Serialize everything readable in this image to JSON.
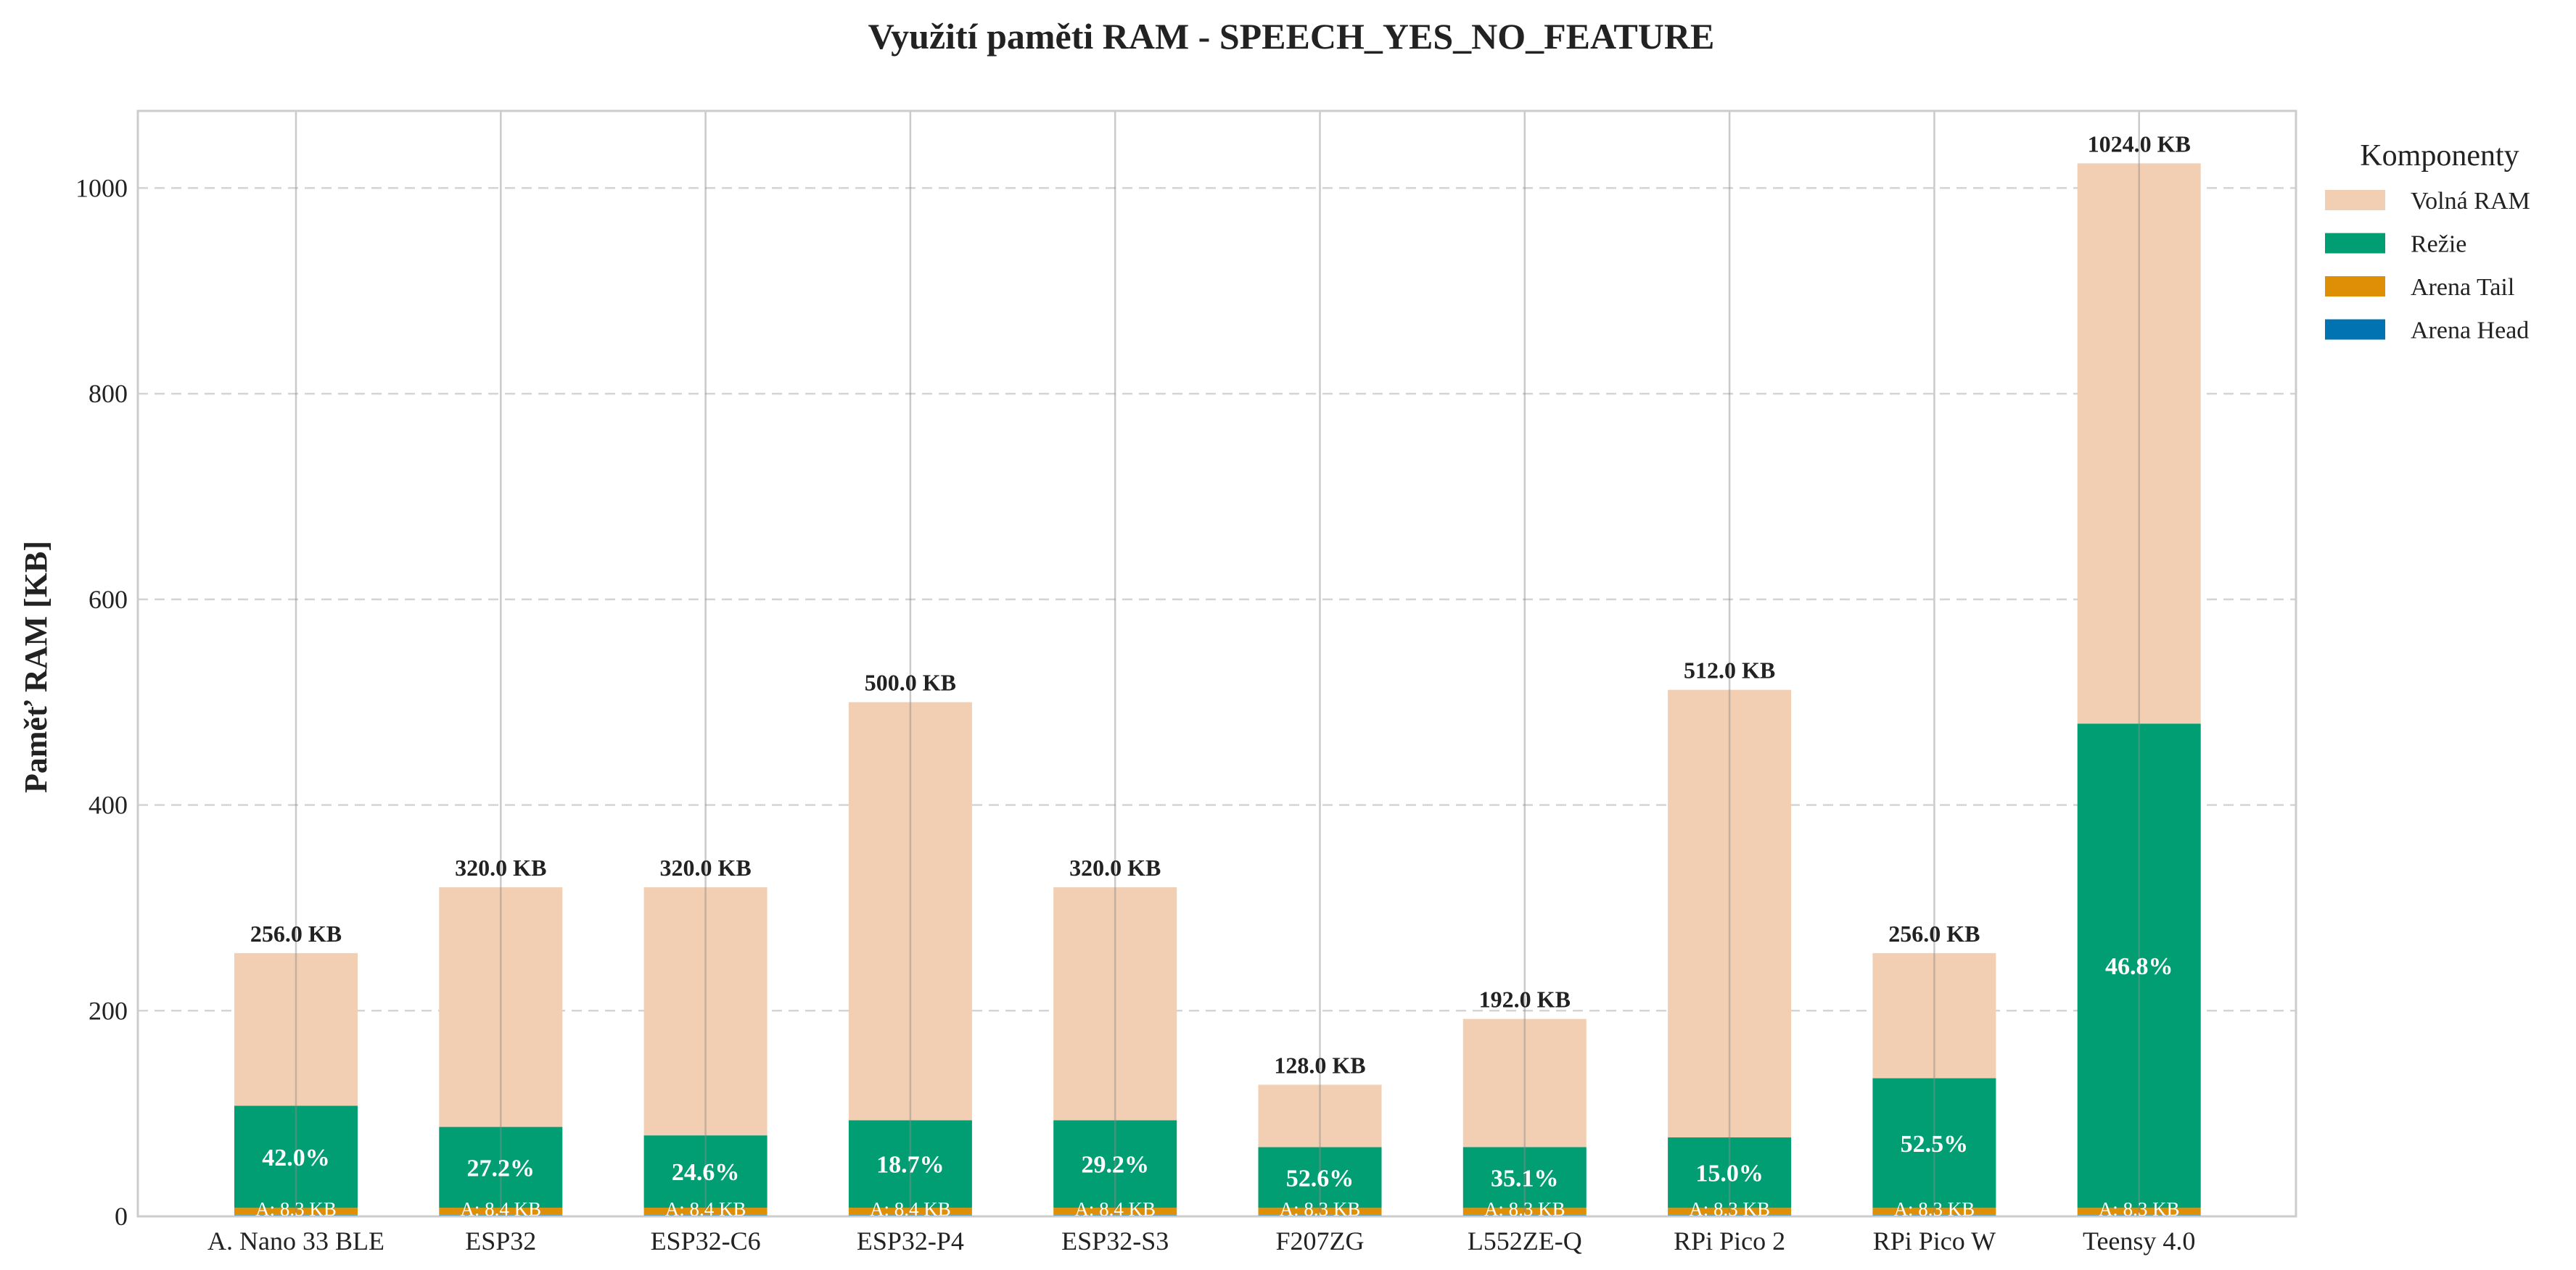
{
  "chart_data": {
    "type": "bar",
    "stacked": true,
    "title": "Využití paměti RAM - SPEECH_YES_NO_FEATURE",
    "xlabel": "",
    "ylabel": "Paměť RAM [KB]",
    "ylim": [
      0,
      1075
    ],
    "yticks": [
      0,
      200,
      400,
      600,
      800,
      1000
    ],
    "grid": "horizontal dashed",
    "categories": [
      "A. Nano 33 BLE",
      "ESP32",
      "ESP32-C6",
      "ESP32-P4",
      "ESP32-S3",
      "F207ZG",
      "L552ZE-Q",
      "RPi Pico 2",
      "RPi Pico W",
      "Teensy 4.0"
    ],
    "series": [
      {
        "name": "Arena Head",
        "color": "#0173b2",
        "values": [
          1.5,
          1.5,
          1.5,
          1.5,
          1.5,
          1.5,
          1.5,
          1.5,
          1.5,
          1.5
        ]
      },
      {
        "name": "Arena Tail",
        "color": "#de8f05",
        "values": [
          6.8,
          6.9,
          6.9,
          6.9,
          6.9,
          6.8,
          6.8,
          6.8,
          6.8,
          6.8
        ]
      },
      {
        "name": "Režie",
        "color": "#029e73",
        "values": [
          99.2,
          78.6,
          70.4,
          85.1,
          85.1,
          59.0,
          59.1,
          68.5,
          126.1,
          470.9
        ]
      },
      {
        "name": "Volná RAM",
        "color": "#f2cfb2",
        "values": [
          148.5,
          233.0,
          241.2,
          406.5,
          226.5,
          60.7,
          124.6,
          435.2,
          121.6,
          544.8
        ]
      }
    ],
    "totals": [
      256.0,
      320.0,
      320.0,
      500.0,
      320.0,
      128.0,
      192.0,
      512.0,
      256.0,
      1024.0
    ],
    "total_labels": [
      "256.0 KB",
      "320.0 KB",
      "320.0 KB",
      "500.0 KB",
      "320.0 KB",
      "128.0 KB",
      "192.0 KB",
      "512.0 KB",
      "256.0 KB",
      "1024.0 KB"
    ],
    "usage_labels": [
      "42.0%",
      "27.2%",
      "24.6%",
      "18.7%",
      "29.2%",
      "52.6%",
      "35.1%",
      "15.0%",
      "52.5%",
      "46.8%"
    ],
    "arena_labels": [
      "A: 8.3 KB",
      "A: 8.4 KB",
      "A: 8.4 KB",
      "A: 8.4 KB",
      "A: 8.4 KB",
      "A: 8.3 KB",
      "A: 8.3 KB",
      "A: 8.3 KB",
      "A: 8.3 KB",
      "A: 8.3 KB"
    ],
    "legend": {
      "title": "Komponenty",
      "position": "outside-right-top",
      "items": [
        "Volná RAM",
        "Režie",
        "Arena Tail",
        "Arena Head"
      ]
    }
  }
}
